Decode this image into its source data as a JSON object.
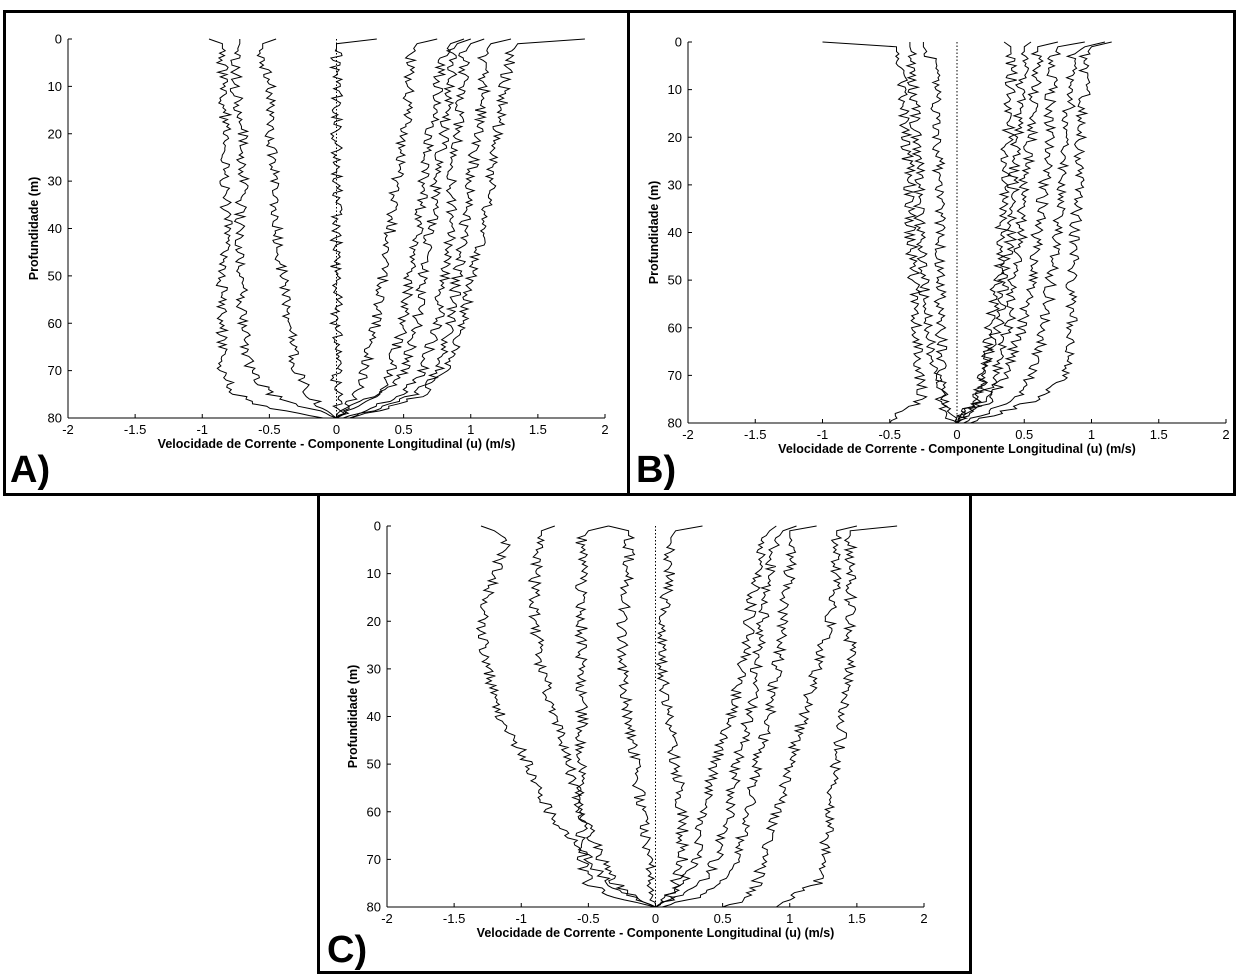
{
  "panels": [
    {
      "letter": "A)",
      "xlabel": "Velocidade de Corrente - Componente Longitudinal (u) (m/s)",
      "ylabel": "Profundidade (m)",
      "xticks": [
        "-2",
        "-1.5",
        "-1",
        "-0.5",
        "0",
        "0.5",
        "1",
        "1.5",
        "2"
      ],
      "yticks": [
        "0",
        "10",
        "20",
        "30",
        "40",
        "50",
        "60",
        "70",
        "80"
      ]
    },
    {
      "letter": "B)",
      "xlabel": "Velocidade de Corrente - Componente Longitudinal (u) (m/s)",
      "ylabel": "Profundidade (m)",
      "xticks": [
        "-2",
        "-1.5",
        "-1",
        "-0.5",
        "0",
        "0.5",
        "1",
        "1.5",
        "2"
      ],
      "yticks": [
        "0",
        "10",
        "20",
        "30",
        "40",
        "50",
        "60",
        "70",
        "80"
      ]
    },
    {
      "letter": "C)",
      "xlabel": "Velocidade de Corrente - Componente Longitudinal (u) (m/s)",
      "ylabel": "Profundidade (m)",
      "xticks": [
        "-2",
        "-1.5",
        "-1",
        "-0.5",
        "0",
        "0.5",
        "1",
        "1.5",
        "2"
      ],
      "yticks": [
        "0",
        "10",
        "20",
        "30",
        "40",
        "50",
        "60",
        "70",
        "80"
      ]
    }
  ],
  "chart_data": [
    {
      "type": "line",
      "panel": "A)",
      "xlabel": "Velocidade de Corrente - Componente Longitudinal (u) (m/s)",
      "ylabel": "Profundidade (m)",
      "xlim": [
        -2,
        2
      ],
      "ylim": [
        80,
        0
      ],
      "y_axis_inverted": true,
      "grid": false,
      "depth_m": [
        0,
        1,
        3,
        10,
        20,
        30,
        40,
        50,
        60,
        70,
        75,
        78,
        80
      ],
      "reference_line": {
        "x": 0,
        "style": "dotted"
      },
      "series": [
        {
          "values": [
            -0.95,
            -0.85,
            -0.85,
            -0.85,
            -0.82,
            -0.85,
            -0.8,
            -0.85,
            -0.85,
            -0.85,
            -0.75,
            -0.5,
            -0.1
          ]
        },
        {
          "values": [
            -0.72,
            -0.72,
            -0.75,
            -0.75,
            -0.7,
            -0.7,
            -0.72,
            -0.7,
            -0.7,
            -0.65,
            -0.5,
            -0.2,
            0.0
          ]
        },
        {
          "values": [
            -0.45,
            -0.55,
            -0.55,
            -0.5,
            -0.5,
            -0.45,
            -0.45,
            -0.4,
            -0.35,
            -0.3,
            -0.2,
            -0.1,
            0.0
          ]
        },
        {
          "values": [
            0.3,
            0.0,
            0.0,
            0.0,
            0.0,
            0.0,
            0.0,
            0.0,
            0.0,
            0.0,
            0.0,
            0.0,
            0.0
          ]
        },
        {
          "values": [
            0.75,
            0.6,
            0.55,
            0.55,
            0.5,
            0.45,
            0.4,
            0.35,
            0.3,
            0.2,
            0.15,
            0.05,
            0.0
          ]
        },
        {
          "values": [
            0.95,
            0.85,
            0.8,
            0.75,
            0.7,
            0.65,
            0.6,
            0.55,
            0.5,
            0.4,
            0.3,
            0.1,
            0.0
          ]
        },
        {
          "values": [
            1.0,
            0.9,
            0.85,
            0.85,
            0.8,
            0.75,
            0.7,
            0.65,
            0.6,
            0.5,
            0.35,
            0.15,
            0.0
          ]
        },
        {
          "values": [
            1.1,
            1.0,
            0.95,
            0.95,
            0.9,
            0.85,
            0.85,
            0.8,
            0.75,
            0.65,
            0.5,
            0.25,
            0.05
          ]
        },
        {
          "values": [
            1.3,
            1.15,
            1.1,
            1.1,
            1.05,
            1.0,
            0.95,
            0.9,
            0.85,
            0.75,
            0.6,
            0.3,
            0.1
          ]
        },
        {
          "values": [
            1.85,
            1.35,
            1.3,
            1.25,
            1.2,
            1.15,
            1.1,
            1.0,
            0.95,
            0.8,
            0.65,
            0.35,
            0.1
          ]
        }
      ]
    },
    {
      "type": "line",
      "panel": "B)",
      "xlabel": "Velocidade de Corrente - Componente Longitudinal (u) (m/s)",
      "ylabel": "Profundidade (m)",
      "xlim": [
        -2,
        2
      ],
      "ylim": [
        80,
        0
      ],
      "y_axis_inverted": true,
      "grid": false,
      "depth_m": [
        0,
        1,
        3,
        10,
        20,
        30,
        40,
        50,
        60,
        70,
        75,
        78,
        80
      ],
      "reference_line": {
        "x": 0,
        "style": "dotted"
      },
      "series": [
        {
          "values": [
            -1.0,
            -0.45,
            -0.45,
            -0.4,
            -0.38,
            -0.35,
            -0.35,
            -0.32,
            -0.3,
            -0.28,
            -0.25,
            -0.45,
            -0.5
          ]
        },
        {
          "values": [
            -0.35,
            -0.35,
            -0.33,
            -0.33,
            -0.3,
            -0.28,
            -0.28,
            -0.25,
            -0.22,
            -0.15,
            -0.1,
            -0.05,
            0.0
          ]
        },
        {
          "values": [
            -0.25,
            -0.25,
            -0.2,
            -0.15,
            -0.15,
            -0.13,
            -0.13,
            -0.13,
            -0.12,
            -0.12,
            -0.12,
            -0.1,
            0.0
          ]
        },
        {
          "values": [
            0.35,
            0.4,
            0.4,
            0.4,
            0.38,
            0.35,
            0.33,
            0.3,
            0.25,
            0.2,
            0.15,
            0.05,
            0.0
          ]
        },
        {
          "values": [
            0.55,
            0.5,
            0.5,
            0.48,
            0.45,
            0.42,
            0.4,
            0.35,
            0.3,
            0.2,
            0.15,
            0.05,
            0.0
          ]
        },
        {
          "values": [
            0.75,
            0.6,
            0.6,
            0.58,
            0.55,
            0.5,
            0.48,
            0.42,
            0.38,
            0.28,
            0.2,
            0.1,
            0.0
          ]
        },
        {
          "values": [
            0.95,
            0.75,
            0.72,
            0.7,
            0.68,
            0.65,
            0.6,
            0.55,
            0.48,
            0.35,
            0.25,
            0.1,
            0.0
          ]
        },
        {
          "values": [
            1.1,
            0.95,
            0.85,
            0.85,
            0.8,
            0.78,
            0.75,
            0.7,
            0.65,
            0.55,
            0.45,
            0.2,
            0.05
          ]
        },
        {
          "values": [
            1.15,
            1.0,
            0.95,
            0.95,
            0.92,
            0.9,
            0.88,
            0.85,
            0.85,
            0.8,
            0.6,
            0.3,
            0.1
          ]
        }
      ]
    },
    {
      "type": "line",
      "panel": "C)",
      "xlabel": "Velocidade de Corrente - Componente Longitudinal (u) (m/s)",
      "ylabel": "Profundidade (m)",
      "xlim": [
        -2,
        2
      ],
      "ylim": [
        80,
        0
      ],
      "y_axis_inverted": true,
      "grid": false,
      "depth_m": [
        0,
        1,
        3,
        10,
        20,
        30,
        40,
        50,
        60,
        70,
        75,
        78,
        80
      ],
      "reference_line": {
        "x": 0,
        "style": "dotted"
      },
      "series": [
        {
          "values": [
            -1.3,
            -1.2,
            -1.1,
            -1.2,
            -1.3,
            -1.25,
            -1.15,
            -0.95,
            -0.8,
            -0.5,
            -0.35,
            -0.15,
            0.0
          ]
        },
        {
          "values": [
            -0.75,
            -0.85,
            -0.85,
            -0.9,
            -0.9,
            -0.85,
            -0.75,
            -0.65,
            -0.55,
            -0.4,
            -0.3,
            -0.15,
            0.0
          ]
        },
        {
          "values": [
            -0.35,
            -0.5,
            -0.55,
            -0.55,
            -0.55,
            -0.55,
            -0.55,
            -0.55,
            -0.55,
            -0.55,
            -0.5,
            -0.3,
            0.0
          ]
        },
        {
          "values": [
            -0.35,
            -0.2,
            -0.2,
            -0.2,
            -0.25,
            -0.25,
            -0.2,
            -0.15,
            -0.1,
            -0.05,
            -0.05,
            0.0,
            0.0
          ]
        },
        {
          "values": [
            0.35,
            0.15,
            0.1,
            0.1,
            0.05,
            0.05,
            0.1,
            0.15,
            0.2,
            0.2,
            0.15,
            0.1,
            0.0
          ]
        },
        {
          "values": [
            0.9,
            0.85,
            0.8,
            0.75,
            0.7,
            0.65,
            0.55,
            0.45,
            0.35,
            0.3,
            0.2,
            0.1,
            0.0
          ]
        },
        {
          "values": [
            1.05,
            0.95,
            0.9,
            0.85,
            0.8,
            0.75,
            0.7,
            0.6,
            0.55,
            0.45,
            0.35,
            0.15,
            0.0
          ]
        },
        {
          "values": [
            1.2,
            1.0,
            1.0,
            1.0,
            0.95,
            0.9,
            0.85,
            0.75,
            0.7,
            0.6,
            0.5,
            0.3,
            0.05
          ]
        },
        {
          "values": [
            1.5,
            1.35,
            1.35,
            1.35,
            1.3,
            1.2,
            1.1,
            1.0,
            0.9,
            0.8,
            0.75,
            0.7,
            0.5
          ]
        },
        {
          "values": [
            1.8,
            1.45,
            1.45,
            1.45,
            1.45,
            1.45,
            1.4,
            1.35,
            1.3,
            1.25,
            1.2,
            1.0,
            0.9
          ]
        }
      ]
    }
  ]
}
